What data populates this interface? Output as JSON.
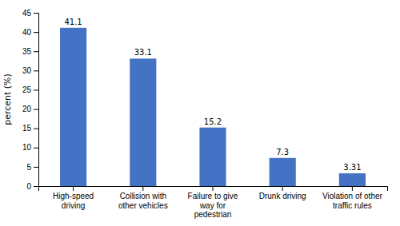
{
  "chart_data": {
    "type": "bar",
    "categories": [
      "High-speed\ndriving",
      "Collision with\nother vehicles",
      "Failure to give\nway for\npedestrian",
      "Drunk driving",
      "Violation of other\ntraffic rules"
    ],
    "values": [
      41.1,
      33.1,
      15.2,
      7.3,
      3.31
    ],
    "color": "#4472c4",
    "ylabel": "percent (%)",
    "ylim": [
      0,
      45
    ],
    "yticks": [
      0,
      5,
      10,
      15,
      20,
      25,
      30,
      35,
      40,
      45
    ],
    "data_labels": true,
    "grid": false
  }
}
